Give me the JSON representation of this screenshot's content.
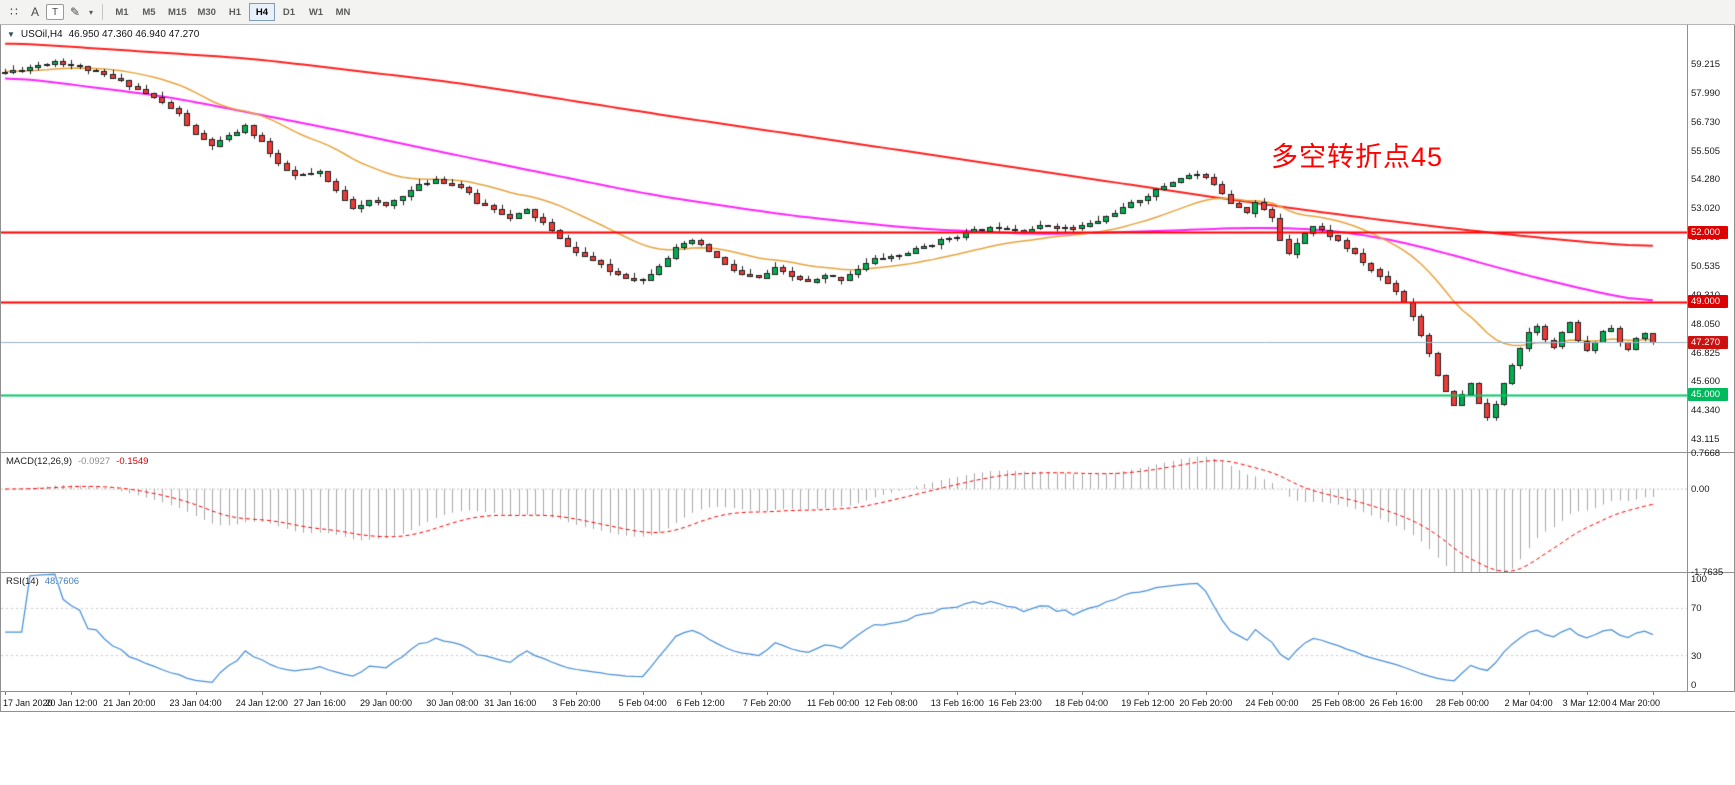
{
  "toolbar": {
    "tool_icons": [
      {
        "name": "grip-icon",
        "glyph": "∷",
        "boxed": false
      },
      {
        "name": "text-label-icon",
        "glyph": "A",
        "boxed": false
      },
      {
        "name": "text-box-icon",
        "glyph": "T",
        "boxed": true
      },
      {
        "name": "draw-color-icon",
        "glyph": "✎",
        "boxed": false
      },
      {
        "name": "dropdown-caret-icon",
        "glyph": "▾",
        "boxed": false
      }
    ],
    "timeframes": [
      {
        "label": "M1",
        "active": false
      },
      {
        "label": "M5",
        "active": false
      },
      {
        "label": "M15",
        "active": false
      },
      {
        "label": "M30",
        "active": false
      },
      {
        "label": "H1",
        "active": false
      },
      {
        "label": "H4",
        "active": true
      },
      {
        "label": "D1",
        "active": false
      },
      {
        "label": "W1",
        "active": false
      },
      {
        "label": "MN",
        "active": false
      }
    ]
  },
  "chart_data": {
    "type": "candlestick",
    "symbol_label": "USOil,H4",
    "ohlc_label": "46.950 47.360 46.940 47.270",
    "ohlc_current": {
      "open": 46.95,
      "high": 47.36,
      "low": 46.94,
      "close": 47.27
    },
    "annotation": {
      "text": "多空转折点45",
      "color": "#ff0000"
    },
    "ylim": [
      42.55,
      60.9
    ],
    "price_ticks": [
      59.215,
      57.99,
      56.73,
      55.505,
      54.28,
      53.02,
      51.795,
      50.535,
      49.31,
      48.05,
      46.825,
      45.6,
      44.34,
      43.115
    ],
    "bars": 200,
    "noise_seed": 11,
    "noise_amp": 0.14,
    "wick_amp": 0.22,
    "up_color": "#00b050",
    "down_color": "#ef3a36",
    "outline_color": "#222222",
    "close_path": [
      [
        0,
        58.9
      ],
      [
        3,
        59.1
      ],
      [
        6,
        59.35
      ],
      [
        9,
        59.1
      ],
      [
        12,
        58.75
      ],
      [
        15,
        58.35
      ],
      [
        18,
        57.8
      ],
      [
        21,
        57.1
      ],
      [
        23,
        56.2
      ],
      [
        25,
        55.75
      ],
      [
        27,
        56.1
      ],
      [
        29,
        56.55
      ],
      [
        31,
        55.9
      ],
      [
        33,
        54.9
      ],
      [
        35,
        54.45
      ],
      [
        38,
        54.55
      ],
      [
        40,
        53.8
      ],
      [
        42,
        53.1
      ],
      [
        44,
        53.35
      ],
      [
        46,
        53.15
      ],
      [
        48,
        53.6
      ],
      [
        50,
        54.0
      ],
      [
        52,
        54.3
      ],
      [
        55,
        53.95
      ],
      [
        57,
        53.3
      ],
      [
        59,
        53.05
      ],
      [
        61,
        52.6
      ],
      [
        63,
        52.95
      ],
      [
        65,
        52.4
      ],
      [
        67,
        51.7
      ],
      [
        69,
        51.15
      ],
      [
        71,
        50.8
      ],
      [
        73,
        50.35
      ],
      [
        75,
        50.1
      ],
      [
        77,
        49.95
      ],
      [
        79,
        50.6
      ],
      [
        81,
        51.3
      ],
      [
        83,
        51.65
      ],
      [
        85,
        51.2
      ],
      [
        87,
        50.6
      ],
      [
        89,
        50.2
      ],
      [
        91,
        50.0
      ],
      [
        93,
        50.45
      ],
      [
        95,
        50.1
      ],
      [
        97,
        49.85
      ],
      [
        99,
        50.1
      ],
      [
        101,
        50.0
      ],
      [
        103,
        50.45
      ],
      [
        105,
        50.85
      ],
      [
        108,
        51.0
      ],
      [
        111,
        51.4
      ],
      [
        114,
        51.75
      ],
      [
        117,
        52.05
      ],
      [
        120,
        52.25
      ],
      [
        123,
        52.1
      ],
      [
        126,
        52.3
      ],
      [
        129,
        52.15
      ],
      [
        132,
        52.5
      ],
      [
        135,
        53.05
      ],
      [
        138,
        53.6
      ],
      [
        140,
        54.0
      ],
      [
        142,
        54.35
      ],
      [
        144,
        54.5
      ],
      [
        146,
        54.1
      ],
      [
        148,
        53.3
      ],
      [
        150,
        52.9
      ],
      [
        151,
        53.3
      ],
      [
        153,
        52.6
      ],
      [
        154,
        51.7
      ],
      [
        155,
        51.1
      ],
      [
        156,
        51.6
      ],
      [
        157,
        52.0
      ],
      [
        158,
        52.25
      ],
      [
        160,
        51.9
      ],
      [
        162,
        51.35
      ],
      [
        164,
        50.7
      ],
      [
        166,
        50.1
      ],
      [
        168,
        49.5
      ],
      [
        169,
        49.0
      ],
      [
        170,
        48.4
      ],
      [
        171,
        47.6
      ],
      [
        172,
        46.8
      ],
      [
        173,
        45.9
      ],
      [
        174,
        45.1
      ],
      [
        175,
        44.55
      ],
      [
        176,
        45.0
      ],
      [
        177,
        45.5
      ],
      [
        178,
        44.7
      ],
      [
        179,
        44.0
      ],
      [
        180,
        44.6
      ],
      [
        181,
        45.55
      ],
      [
        182,
        46.35
      ],
      [
        183,
        47.05
      ],
      [
        184,
        47.7
      ],
      [
        185,
        48.0
      ],
      [
        186,
        47.45
      ],
      [
        187,
        47.05
      ],
      [
        188,
        47.7
      ],
      [
        189,
        48.05
      ],
      [
        190,
        47.35
      ],
      [
        191,
        46.9
      ],
      [
        192,
        47.3
      ],
      [
        193,
        47.75
      ],
      [
        194,
        47.95
      ],
      [
        195,
        47.25
      ],
      [
        196,
        46.9
      ],
      [
        197,
        47.45
      ],
      [
        198,
        47.6
      ],
      [
        199,
        47.27
      ]
    ],
    "moving_averages": [
      {
        "name": "ma-slow-red",
        "color": "#ff1f1f",
        "width": 2,
        "anchors": [
          [
            0,
            60.15
          ],
          [
            30,
            59.45
          ],
          [
            55,
            58.4
          ],
          [
            80,
            57.0
          ],
          [
            100,
            55.95
          ],
          [
            115,
            55.15
          ],
          [
            130,
            54.35
          ],
          [
            145,
            53.55
          ],
          [
            158,
            52.9
          ],
          [
            170,
            52.35
          ],
          [
            180,
            51.95
          ],
          [
            190,
            51.6
          ],
          [
            199,
            51.35
          ]
        ]
      },
      {
        "name": "ma-mid-magenta",
        "color": "#ff22ff",
        "width": 2,
        "anchors": [
          [
            0,
            58.7
          ],
          [
            20,
            57.8
          ],
          [
            40,
            56.4
          ],
          [
            60,
            54.9
          ],
          [
            78,
            53.6
          ],
          [
            95,
            52.7
          ],
          [
            110,
            52.15
          ],
          [
            125,
            51.9
          ],
          [
            140,
            52.05
          ],
          [
            150,
            52.2
          ],
          [
            158,
            52.15
          ],
          [
            166,
            51.8
          ],
          [
            174,
            51.1
          ],
          [
            182,
            50.3
          ],
          [
            190,
            49.6
          ],
          [
            199,
            48.9
          ]
        ]
      },
      {
        "name": "ma-fast-orange",
        "color": "#e8a33d",
        "width": 1.5,
        "ema_period": 21
      }
    ],
    "h_lines": [
      {
        "price": 52.0,
        "label": "52.000",
        "color": "#ff0000",
        "badge_color": "#dd0000",
        "width": 2
      },
      {
        "price": 49.0,
        "label": "49.000",
        "color": "#ff0000",
        "badge_color": "#dd0000",
        "width": 2
      },
      {
        "price": 45.0,
        "label": "45.000",
        "color": "#00cc66",
        "badge_color": "#00bb5d",
        "width": 2
      }
    ],
    "bid_line": {
      "price": 47.27,
      "label": "47.270",
      "color": "#9bb3c9",
      "badge_color": "#cc1111",
      "width": 1
    },
    "macd": {
      "name": "MACD(12,26,9)",
      "value_main": "-0.0927",
      "value_signal": "-0.1549",
      "fast": 12,
      "slow": 26,
      "signal_period": 9,
      "ylim": [
        -1.7635,
        0.7668
      ],
      "axis": [
        {
          "value": 0.7668,
          "label": "0.7668"
        },
        {
          "value": 0,
          "label": "0.00"
        },
        {
          "value": -1.7635,
          "label": "-1.7635"
        }
      ],
      "histogram_color": "#a8a8a8",
      "signal_color": "#ff0000",
      "zero_line_color": "#c4c4c4"
    },
    "rsi": {
      "name": "RSI(14)",
      "value": "48.7606",
      "period": 14,
      "levels": [
        70,
        30
      ],
      "ylim": [
        0,
        100
      ],
      "axis": [
        {
          "value": 100,
          "label": "100"
        },
        {
          "value": 70,
          "label": "70"
        },
        {
          "value": 30,
          "label": "30"
        },
        {
          "value": 0,
          "label": "0"
        }
      ],
      "line_color": "#4a90d9",
      "level_color": "#c8c8c8"
    },
    "time_axis": [
      "17 Jan 2020",
      "20 Jan 12:00",
      "21 Jan 20:00",
      "23 Jan 04:00",
      "24 Jan 12:00",
      "27 Jan 16:00",
      "29 Jan 00:00",
      "30 Jan 08:00",
      "31 Jan 16:00",
      "3 Feb 20:00",
      "5 Feb 04:00",
      "6 Feb 12:00",
      "7 Feb 20:00",
      "11 Feb 00:00",
      "12 Feb 08:00",
      "13 Feb 16:00",
      "16 Feb 23:00",
      "18 Feb 04:00",
      "19 Feb 12:00",
      "20 Feb 20:00",
      "24 Feb 00:00",
      "25 Feb 08:00",
      "26 Feb 16:00",
      "28 Feb 00:00",
      "2 Mar 04:00",
      "3 Mar 12:00",
      "4 Mar 20:00"
    ]
  }
}
